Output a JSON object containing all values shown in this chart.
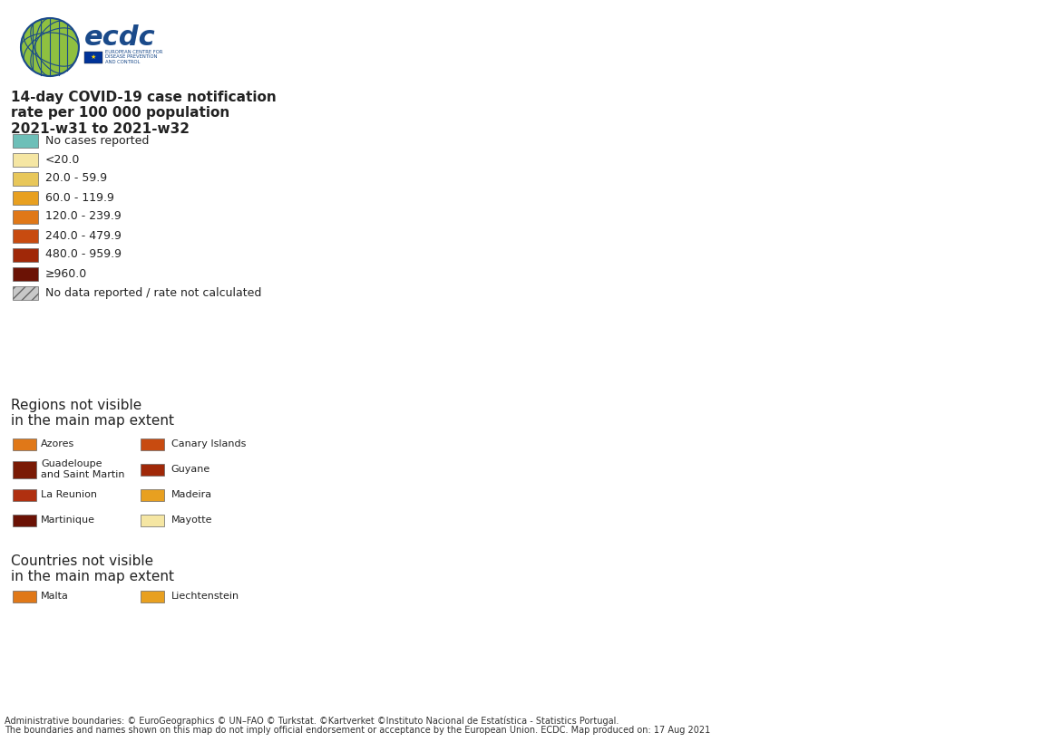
{
  "title_line1": "14-day COVID-19 case notification",
  "title_line2": "rate per 100 000 population",
  "title_line3": "2021-w31 to 2021-w32",
  "background_color": "#ffffff",
  "ocean_color": "#b8d4e8",
  "outside_color": "#e8e8e8",
  "outside_border": "#aaaaaa",
  "legend_colors": [
    "#6dbfb8",
    "#f5e6a3",
    "#e8c75a",
    "#e8a020",
    "#e07818",
    "#c84b10",
    "#a02808",
    "#6b1205"
  ],
  "legend_labels": [
    "No cases reported",
    "<20.0",
    "20.0 - 59.9",
    "60.0 - 119.9",
    "120.0 - 239.9",
    "240.0 - 479.9",
    "480.0 - 959.9",
    "≥960.0"
  ],
  "hatch_label": "No data reported / rate not calculated",
  "regions_title": "Regions not visible\nin the main map extent",
  "regions": [
    {
      "name": "Azores",
      "color": "#e07818"
    },
    {
      "name": "Guadeloupe\nand Saint Martin",
      "color": "#7a1a05"
    },
    {
      "name": "La Reunion",
      "color": "#b03010"
    },
    {
      "name": "Martinique",
      "color": "#6b1205"
    },
    {
      "name": "Canary Islands",
      "color": "#c84b10"
    },
    {
      "name": "Guyane",
      "color": "#a02808"
    },
    {
      "name": "Madeira",
      "color": "#e8a020"
    },
    {
      "name": "Mayotte",
      "color": "#f5e6a3"
    }
  ],
  "countries_title": "Countries not visible\nin the main map extent",
  "countries": [
    {
      "name": "Malta",
      "color": "#e07818"
    },
    {
      "name": "Liechtenstein",
      "color": "#e8a020"
    }
  ],
  "footnote1": "Administrative boundaries: © EuroGeographics © UN–FAO © Turkstat. ©Kartverket ©Instituto Nacional de Estatística - Statistics Portugal.",
  "footnote2": "The boundaries and names shown on this map do not imply official endorsement or acceptance by the European Union. ECDC. Map produced on: 17 Aug 2021",
  "country_colors": {
    "Iceland": "#a02808",
    "Norway": "#e07818",
    "Sweden": "#e07818",
    "Finland": "#e07818",
    "Denmark": "#e07818",
    "Estonia": "#c84b10",
    "Latvia": "#a02808",
    "Lithuania": "#c84b10",
    "Ireland": "#a02808",
    "United Kingdom": "#e8e8e8",
    "Netherlands": "#e07818",
    "Belgium": "#e07818",
    "Luxembourg": "#f5e6a3",
    "Germany": "#f5e6a3",
    "Poland": "#f5e6a3",
    "Czech Republic": "#f5e6a3",
    "Czechia": "#f5e6a3",
    "Slovakia": "#f5e6a3",
    "Austria": "#e8c75a",
    "Switzerland": "#f5e6a3",
    "France": "#a02808",
    "Spain": "#a02808",
    "Portugal": "#a02808",
    "Italy": "#e07818",
    "Hungary": "#f5e6a3",
    "Romania": "#e8a020",
    "Bulgaria": "#e07818",
    "Serbia": "#e8a020",
    "Croatia": "#e8a020",
    "Slovenia": "#e8c75a",
    "Bosnia and Herz.": "#e8a020",
    "Bosnia and Herzegovina": "#e8a020",
    "Montenegro": "#e8a020",
    "Albania": "#e8a020",
    "North Macedonia": "#e8a020",
    "Macedonia": "#e8a020",
    "Kosovo": "#e8a020",
    "Greece": "#c84b10",
    "Cyprus": "#a02808",
    "Belarus": "#e8e8e8",
    "Ukraine": "#e8e8e8",
    "Moldova": "#e8e8e8",
    "Russia": "#e8e8e8",
    "Turkey": "#e8e8e8",
    "Kaliningrad": "#e8e8e8",
    "Liechtenstein": "#e8a020",
    "Malta": "#e07818",
    "Andorra": "#a02808",
    "Monaco": "#a02808",
    "San Marino": "#e8a020",
    "Vatican": "#e8a020",
    "Faroe Islands": "#e8e8e8"
  },
  "title_fontsize": 11,
  "legend_fontsize": 9,
  "section_title_fontsize": 11,
  "footnote_fontsize": 7
}
